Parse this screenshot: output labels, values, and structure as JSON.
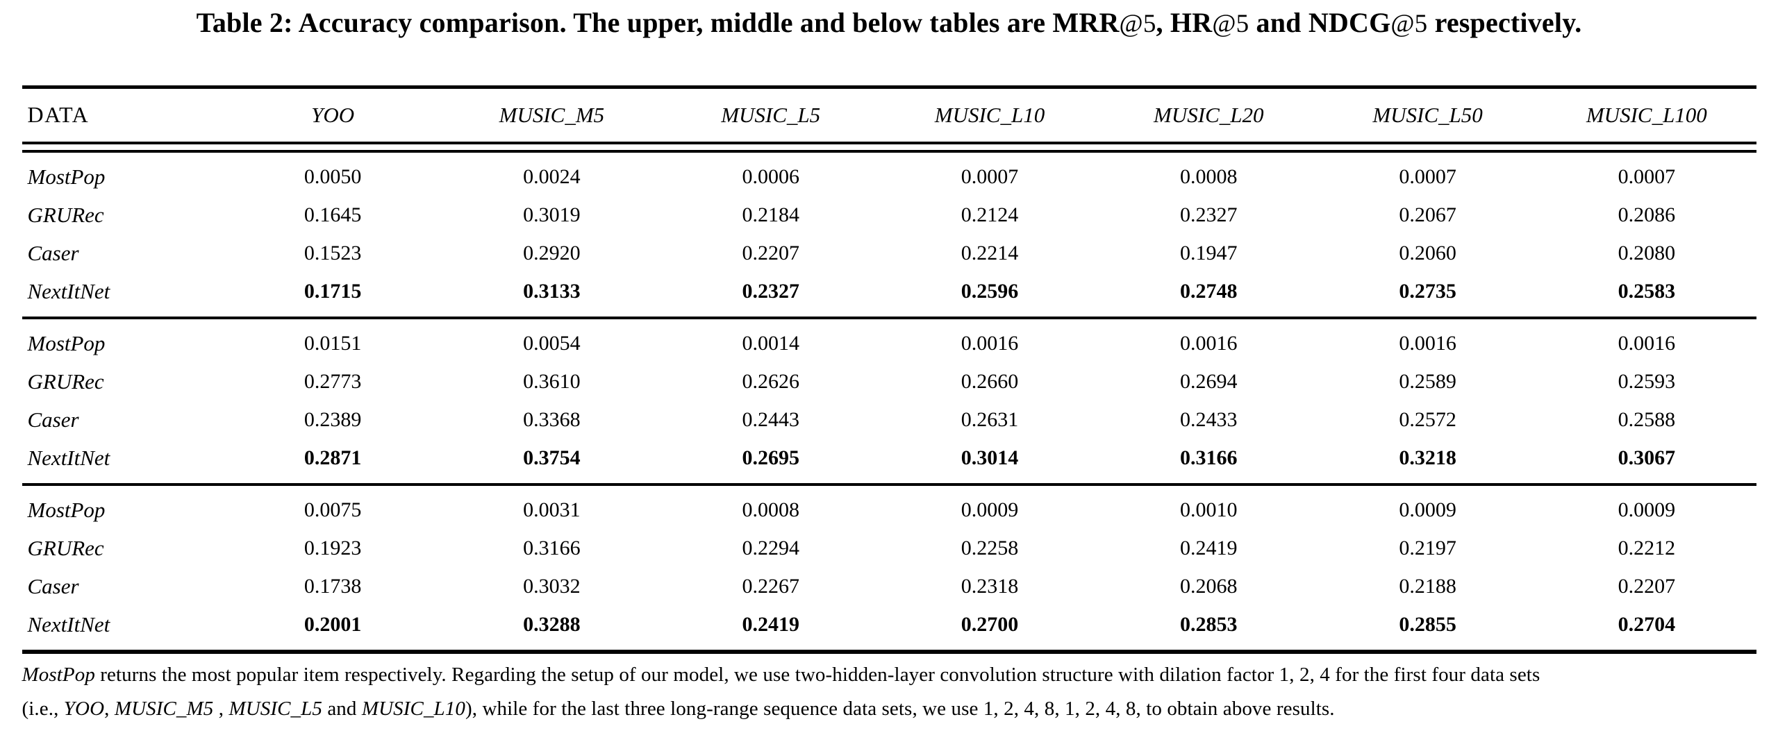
{
  "page": {
    "background": "#ffffff",
    "text_color": "#000000",
    "rule_color": "#000000"
  },
  "caption": {
    "segments": [
      {
        "text": "Table 2: "
      },
      {
        "text": "Accuracy comparison. The upper, middle and below tables are MRR"
      },
      {
        "text": "@5"
      },
      {
        "text": ", HR"
      },
      {
        "text": "@5"
      },
      {
        "text": " and NDCG"
      },
      {
        "text": "@5"
      },
      {
        "text": " respectively."
      }
    ]
  },
  "table": {
    "columns": [
      "DATA",
      "YOO",
      "MUSIC_M5",
      "MUSIC_L5",
      "MUSIC_L10",
      "MUSIC_L20",
      "MUSIC_L50",
      "MUSIC_L100"
    ],
    "blocks": [
      {
        "metric": "MRR@5",
        "rows": [
          {
            "label": "MostPop",
            "bold": false,
            "values": [
              "0.0050",
              "0.0024",
              "0.0006",
              "0.0007",
              "0.0008",
              "0.0007",
              "0.0007"
            ]
          },
          {
            "label": "GRURec",
            "bold": false,
            "values": [
              "0.1645",
              "0.3019",
              "0.2184",
              "0.2124",
              "0.2327",
              "0.2067",
              "0.2086"
            ]
          },
          {
            "label": "Caser",
            "bold": false,
            "values": [
              "0.1523",
              "0.2920",
              "0.2207",
              "0.2214",
              "0.1947",
              "0.2060",
              "0.2080"
            ]
          },
          {
            "label": "NextItNet",
            "bold": true,
            "values": [
              "0.1715",
              "0.3133",
              "0.2327",
              "0.2596",
              "0.2748",
              "0.2735",
              "0.2583"
            ]
          }
        ]
      },
      {
        "metric": "HR@5",
        "rows": [
          {
            "label": "MostPop",
            "bold": false,
            "values": [
              "0.0151",
              "0.0054",
              "0.0014",
              "0.0016",
              "0.0016",
              "0.0016",
              "0.0016"
            ]
          },
          {
            "label": "GRURec",
            "bold": false,
            "values": [
              "0.2773",
              "0.3610",
              "0.2626",
              "0.2660",
              "0.2694",
              "0.2589",
              "0.2593"
            ]
          },
          {
            "label": "Caser",
            "bold": false,
            "values": [
              "0.2389",
              "0.3368",
              "0.2443",
              "0.2631",
              "0.2433",
              "0.2572",
              "0.2588"
            ]
          },
          {
            "label": "NextItNet",
            "bold": true,
            "values": [
              "0.2871",
              "0.3754",
              "0.2695",
              "0.3014",
              "0.3166",
              "0.3218",
              "0.3067"
            ]
          }
        ]
      },
      {
        "metric": "NDCG@5",
        "rows": [
          {
            "label": "MostPop",
            "bold": false,
            "values": [
              "0.0075",
              "0.0031",
              "0.0008",
              "0.0009",
              "0.0010",
              "0.0009",
              "0.0009"
            ]
          },
          {
            "label": "GRURec",
            "bold": false,
            "values": [
              "0.1923",
              "0.3166",
              "0.2294",
              "0.2258",
              "0.2419",
              "0.2197",
              "0.2212"
            ]
          },
          {
            "label": "Caser",
            "bold": false,
            "values": [
              "0.1738",
              "0.3032",
              "0.2267",
              "0.2318",
              "0.2068",
              "0.2188",
              "0.2207"
            ]
          },
          {
            "label": "NextItNet",
            "bold": true,
            "values": [
              "0.2001",
              "0.3288",
              "0.2419",
              "0.2700",
              "0.2853",
              "0.2855",
              "0.2704"
            ]
          }
        ]
      }
    ]
  },
  "footnote": {
    "line1": {
      "segments": [
        {
          "text": "MostPop",
          "italic": true
        },
        {
          "text": " returns the most popular item respectively. Regarding the setup of our model, we use two-hidden-layer convolution structure with dilation factor 1, 2, 4 for the first four data sets",
          "italic": false
        }
      ]
    },
    "line2": {
      "segments": [
        {
          "text": "(i.e., ",
          "italic": false
        },
        {
          "text": "YOO",
          "italic": true
        },
        {
          "text": ",  ",
          "italic": false
        },
        {
          "text": "MUSIC_M5",
          "italic": true
        },
        {
          "text": " , ",
          "italic": false
        },
        {
          "text": "MUSIC_L5",
          "italic": true
        },
        {
          "text": " and ",
          "italic": false
        },
        {
          "text": "MUSIC_L10",
          "italic": true
        },
        {
          "text": "), while for the last three long-range sequence data sets, we use 1, 2, 4, 8, 1, 2, 4, 8, to obtain above results.",
          "italic": false
        }
      ]
    }
  }
}
